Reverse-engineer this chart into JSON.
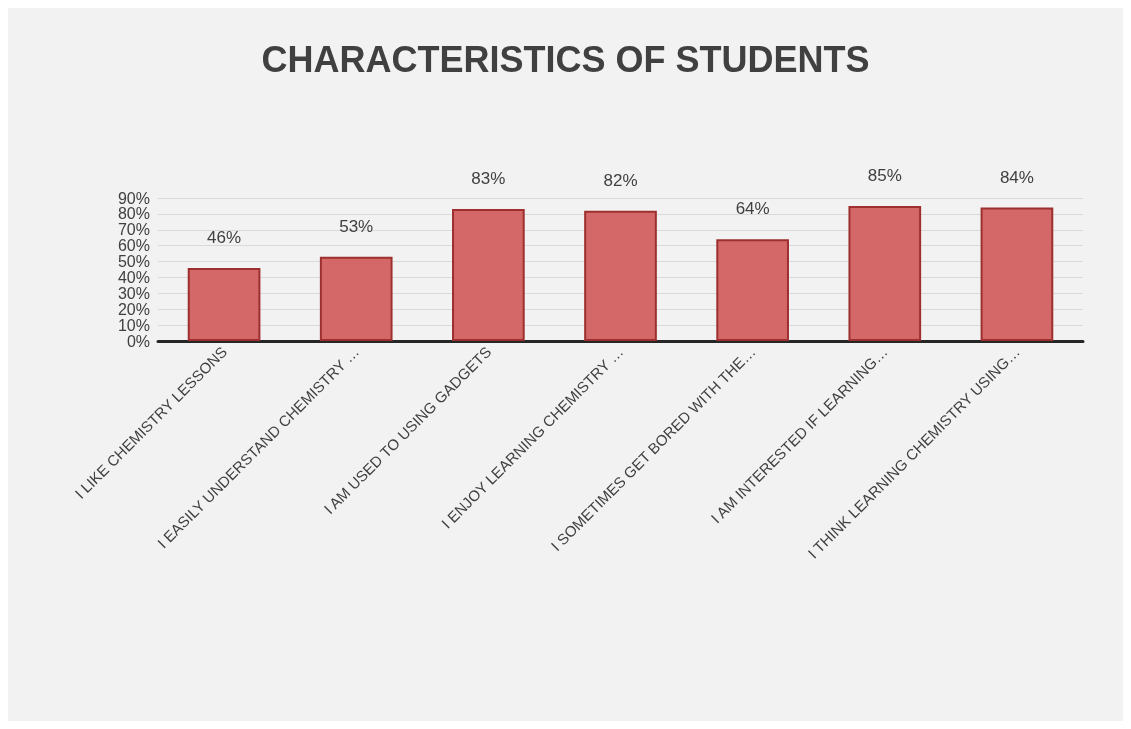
{
  "chart_data": {
    "type": "bar",
    "title": "CHARACTERISTICS OF STUDENTS",
    "categories": [
      "I LIKE CHEMISTRY LESSONS",
      "I EASILY UNDERSTAND CHEMISTRY …",
      "I AM USED TO USING GADGETS",
      "I ENJOY LEARNING CHEMISTRY …",
      "I SOMETIMES GET BORED WITH THE…",
      "I AM INTERESTED IF LEARNING…",
      "I THINK LEARNING CHEMISTRY USING…"
    ],
    "values": [
      46,
      53,
      83,
      82,
      64,
      85,
      84
    ],
    "value_labels": [
      "46%",
      "53%",
      "83%",
      "82%",
      "64%",
      "85%",
      "84%"
    ],
    "color": "#d46868",
    "ylim": [
      0,
      90
    ],
    "yticks": [
      {
        "value": 0,
        "label": "0%"
      },
      {
        "value": 10,
        "label": "10%"
      },
      {
        "value": 20,
        "label": "20%"
      },
      {
        "value": 30,
        "label": "30%"
      },
      {
        "value": 40,
        "label": "40%"
      },
      {
        "value": 50,
        "label": "50%"
      },
      {
        "value": 60,
        "label": "60%"
      },
      {
        "value": 70,
        "label": "70%"
      },
      {
        "value": 80,
        "label": "80%"
      },
      {
        "value": 90,
        "label": "90%"
      }
    ],
    "grid": "y"
  }
}
